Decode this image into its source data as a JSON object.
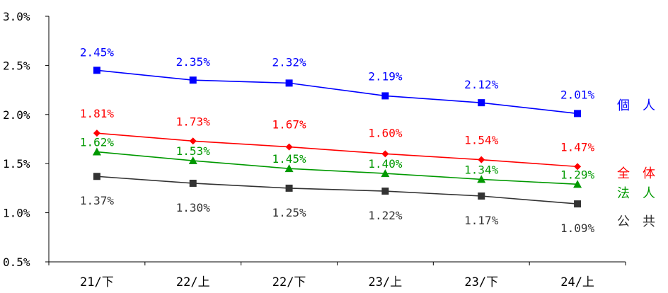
{
  "chart_data": {
    "type": "line",
    "title": "",
    "xlabel": "",
    "ylabel": "",
    "categories": [
      "21/下",
      "22/上",
      "22/下",
      "23/上",
      "23/下",
      "24/上"
    ],
    "ylim": [
      0.5,
      3.0
    ],
    "yticks": [
      "0.5%",
      "1.0%",
      "1.5%",
      "2.0%",
      "2.5%",
      "3.0%"
    ],
    "ytick_values": [
      0.5,
      1.0,
      1.5,
      2.0,
      2.5,
      3.0
    ],
    "grid": false,
    "legend": "right",
    "series": [
      {
        "name": "個　人",
        "color": "#0000ff",
        "marker": "square",
        "values": [
          2.45,
          2.35,
          2.32,
          2.19,
          2.12,
          2.01
        ],
        "labels": [
          "2.45%",
          "2.35%",
          "2.32%",
          "2.19%",
          "2.12%",
          "2.01%"
        ]
      },
      {
        "name": "全　体",
        "color": "#ff0000",
        "marker": "diamond",
        "values": [
          1.81,
          1.73,
          1.67,
          1.6,
          1.54,
          1.47
        ],
        "labels": [
          "1.81%",
          "1.73%",
          "1.67%",
          "1.60%",
          "1.54%",
          "1.47%"
        ]
      },
      {
        "name": "法　人",
        "color": "#009900",
        "marker": "triangle",
        "values": [
          1.62,
          1.53,
          1.45,
          1.4,
          1.34,
          1.29
        ],
        "labels": [
          "1.62%",
          "1.53%",
          "1.45%",
          "1.40%",
          "1.34%",
          "1.29%"
        ]
      },
      {
        "name": "公　共",
        "color": "#333333",
        "marker": "square",
        "values": [
          1.37,
          1.3,
          1.25,
          1.22,
          1.17,
          1.09
        ],
        "labels": [
          "1.37%",
          "1.30%",
          "1.25%",
          "1.22%",
          "1.17%",
          "1.09%"
        ]
      }
    ]
  }
}
